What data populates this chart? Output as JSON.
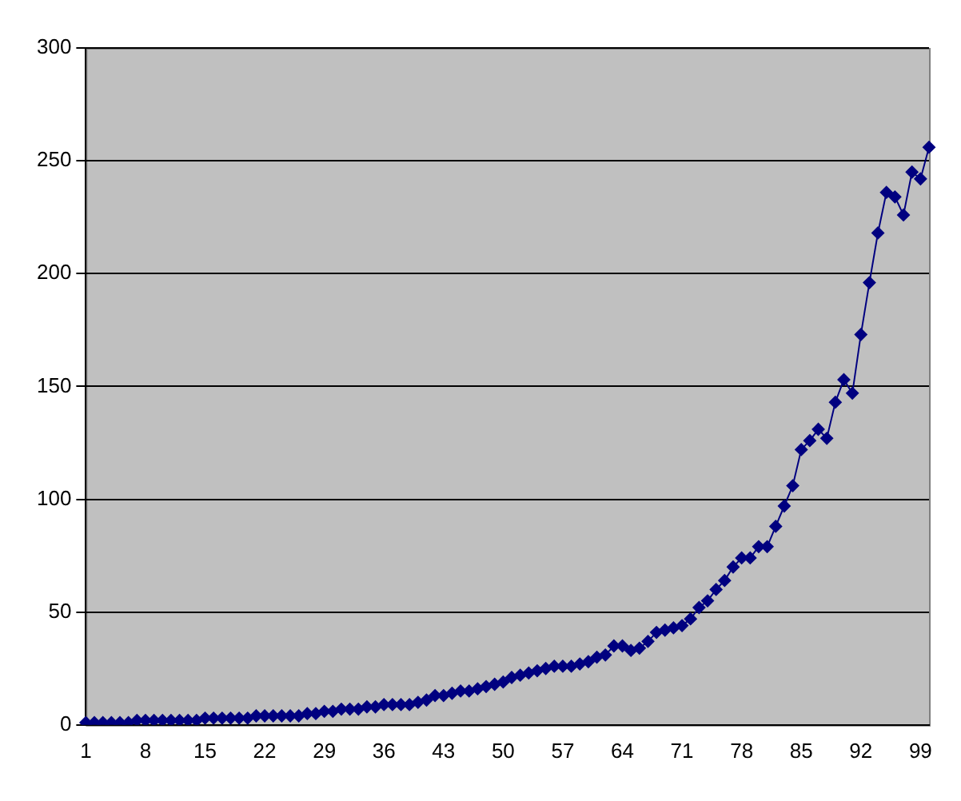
{
  "chart_data": {
    "type": "line",
    "categories": [
      "1",
      null,
      null,
      null,
      null,
      null,
      null,
      "8",
      null,
      null,
      null,
      null,
      null,
      null,
      "15",
      null,
      null,
      null,
      null,
      null,
      null,
      "22",
      null,
      null,
      null,
      null,
      null,
      null,
      "29",
      null,
      null,
      null,
      null,
      null,
      null,
      "36",
      null,
      null,
      null,
      null,
      null,
      null,
      "43",
      null,
      null,
      null,
      null,
      null,
      null,
      "50",
      null,
      null,
      null,
      null,
      null,
      null,
      "57",
      null,
      null,
      null,
      null,
      null,
      null,
      "64",
      null,
      null,
      null,
      null,
      null,
      null,
      "71",
      null,
      null,
      null,
      null,
      null,
      null,
      "78",
      null,
      null,
      null,
      null,
      null,
      null,
      "85",
      null,
      null,
      null,
      null,
      null,
      null,
      "92",
      null,
      null,
      null,
      null,
      null,
      null,
      "99",
      null
    ],
    "series": [
      {
        "color": "#000080",
        "values": [
          1,
          1,
          1,
          1,
          1,
          1,
          2,
          2,
          2,
          2,
          2,
          2,
          2,
          2,
          3,
          3,
          3,
          3,
          3,
          3,
          4,
          4,
          4,
          4,
          4,
          4,
          5,
          5,
          6,
          6,
          7,
          7,
          7,
          8,
          8,
          9,
          9,
          9,
          9,
          10,
          11,
          13,
          13,
          14,
          15,
          15,
          16,
          17,
          18,
          19,
          21,
          22,
          23,
          24,
          25,
          26,
          26,
          26,
          27,
          28,
          30,
          31,
          35,
          35,
          33,
          34,
          37,
          41,
          42,
          43,
          44,
          47,
          52,
          55,
          60,
          64,
          70,
          74,
          74,
          79,
          79,
          88,
          97,
          106,
          122,
          126,
          131,
          127,
          143,
          153,
          147,
          173,
          196,
          218,
          236,
          234,
          226,
          245,
          242,
          256
        ]
      }
    ],
    "ylim": [
      0,
      300
    ],
    "yticks": [
      0,
      50,
      100,
      150,
      200,
      250,
      300
    ],
    "grid": "y",
    "legend": false,
    "marker": "diamond",
    "line_style": "solid"
  }
}
